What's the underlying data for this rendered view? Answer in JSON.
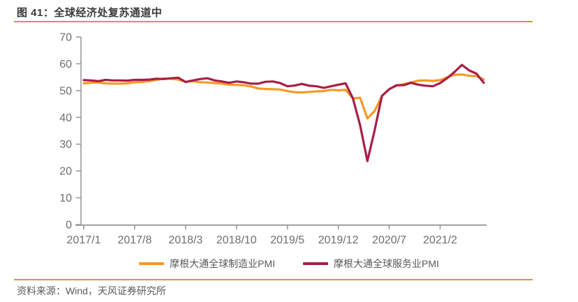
{
  "header": {
    "title": "图 41：全球经济处复苏通道中"
  },
  "footer": {
    "source": "资料来源：Wind，天风证券研究所"
  },
  "colors": {
    "accent_rule": "#cf9747",
    "title_text": "#3a3a3a",
    "muted_text": "#595959",
    "axis_line": "#9b9b9b",
    "tick_label": "#6e6e6e"
  },
  "chart_data": {
    "type": "line",
    "title": "图 41：全球经济处复苏通道中",
    "x_frequency": "monthly",
    "x_start": "2017/1",
    "x_end": "2021/8",
    "x_tick_labels": [
      "2017/1",
      "2017/8",
      "2018/3",
      "2018/10",
      "2019/5",
      "2019/12",
      "2020/7",
      "2021/2"
    ],
    "x_tick_month_index": [
      0,
      7,
      14,
      21,
      28,
      35,
      42,
      49
    ],
    "y_ticks": [
      0,
      10,
      20,
      30,
      40,
      50,
      60,
      70
    ],
    "ylim": [
      0,
      70
    ],
    "grid": false,
    "legend_position": "bottom",
    "series": [
      {
        "name": "摩根大通全球制造业PMI",
        "color": "#f59a23",
        "values": [
          52.7,
          52.9,
          53.0,
          52.7,
          52.6,
          52.6,
          52.7,
          53.1,
          53.2,
          53.5,
          54.0,
          54.5,
          54.4,
          54.1,
          53.3,
          53.5,
          53.1,
          53.0,
          52.8,
          52.6,
          52.2,
          52.1,
          52.0,
          51.5,
          50.8,
          50.6,
          50.5,
          50.4,
          49.8,
          49.4,
          49.3,
          49.5,
          49.7,
          49.8,
          50.3,
          50.1,
          50.3,
          47.1,
          47.3,
          39.6,
          42.4,
          47.9,
          50.6,
          51.8,
          52.4,
          53.0,
          53.7,
          53.8,
          53.6,
          53.9,
          55.0,
          55.9,
          56.0,
          55.5,
          55.4,
          54.1
        ]
      },
      {
        "name": "摩根大通全球服务业PMI",
        "color": "#a81e46",
        "values": [
          53.9,
          53.8,
          53.5,
          54.0,
          53.8,
          53.8,
          53.7,
          54.0,
          54.0,
          54.1,
          54.4,
          54.3,
          54.6,
          54.8,
          53.2,
          53.8,
          54.3,
          54.6,
          53.8,
          53.4,
          52.9,
          53.4,
          53.1,
          52.6,
          52.6,
          53.3,
          53.4,
          52.8,
          51.6,
          51.9,
          52.5,
          51.8,
          51.6,
          51.0,
          51.6,
          52.2,
          52.7,
          47.1,
          37.0,
          23.7,
          35.2,
          48.0,
          50.5,
          52.0,
          52.0,
          52.9,
          52.2,
          51.8,
          51.6,
          52.8,
          54.7,
          57.0,
          59.6,
          57.5,
          56.3,
          52.9
        ]
      }
    ]
  }
}
